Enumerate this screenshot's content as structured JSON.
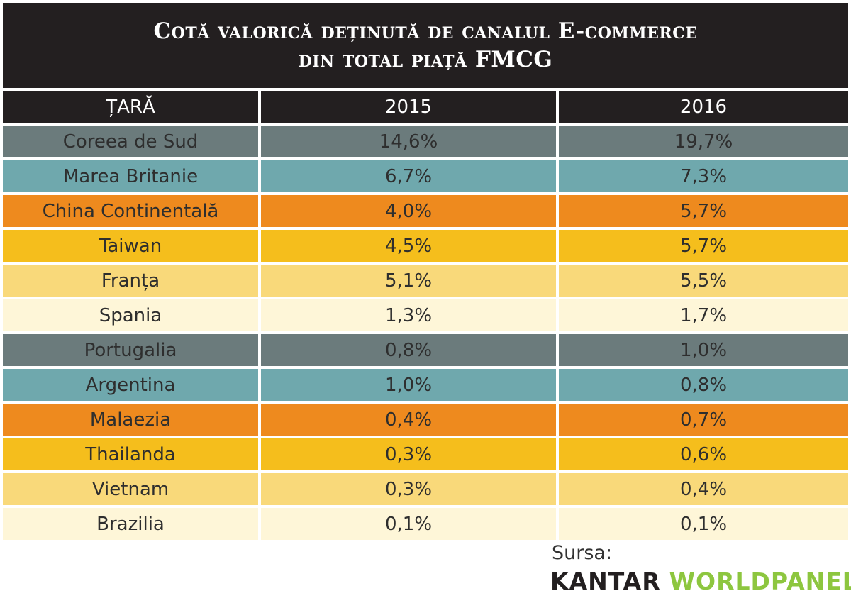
{
  "title": {
    "line1": "Cotă valorică deținută de canalul E-commerce",
    "line2": "din total piață FMCG"
  },
  "chart_data": {
    "type": "table",
    "columns": [
      "ȚARĂ",
      "2015",
      "2016"
    ],
    "rows": [
      {
        "country": "Coreea de Sud",
        "v2015": "14,6%",
        "v2016": "19,7%",
        "color": "#6b7b7c"
      },
      {
        "country": "Marea Britanie",
        "v2015": "6,7%",
        "v2016": "7,3%",
        "color": "#6fa8ad"
      },
      {
        "country": "China Continentală",
        "v2015": "4,0%",
        "v2016": "5,7%",
        "color": "#ee8a1e"
      },
      {
        "country": "Taiwan",
        "v2015": "4,5%",
        "v2016": "5,7%",
        "color": "#f5be1c"
      },
      {
        "country": "Franța",
        "v2015": "5,1%",
        "v2016": "5,5%",
        "color": "#f9d97a"
      },
      {
        "country": "Spania",
        "v2015": "1,3%",
        "v2016": "1,7%",
        "color": "#fef6d8"
      },
      {
        "country": "Portugalia",
        "v2015": "0,8%",
        "v2016": "1,0%",
        "color": "#6b7b7c"
      },
      {
        "country": "Argentina",
        "v2015": "1,0%",
        "v2016": "0,8%",
        "color": "#6fa8ad"
      },
      {
        "country": "Malaezia",
        "v2015": "0,4%",
        "v2016": "0,7%",
        "color": "#ee8a1e"
      },
      {
        "country": "Thailanda",
        "v2015": "0,3%",
        "v2016": "0,6%",
        "color": "#f5be1c"
      },
      {
        "country": "Vietnam",
        "v2015": "0,3%",
        "v2016": "0,4%",
        "color": "#f9d97a"
      },
      {
        "country": "Brazilia",
        "v2015": "0,1%",
        "v2016": "0,1%",
        "color": "#fef6d8"
      }
    ]
  },
  "source": {
    "label": "Sursa:",
    "logo_part1": "KANTAR",
    "logo_part2": "WORLDPANEL"
  }
}
